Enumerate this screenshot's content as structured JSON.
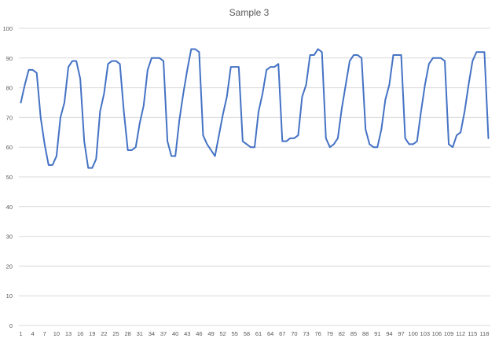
{
  "chart_data": {
    "type": "line",
    "title": "Sample 3",
    "xlabel": "",
    "ylabel": "",
    "ylim": [
      0,
      100
    ],
    "y_ticks": [
      0,
      10,
      20,
      30,
      40,
      50,
      60,
      70,
      80,
      90,
      100
    ],
    "x_tick_step": 3,
    "grid": "horizontal",
    "legend": "none",
    "colors": {
      "series": "#4472c4",
      "grid": "#d9d9d9",
      "text": "#595959"
    },
    "x": [
      1,
      2,
      3,
      4,
      5,
      6,
      7,
      8,
      9,
      10,
      11,
      12,
      13,
      14,
      15,
      16,
      17,
      18,
      19,
      20,
      21,
      22,
      23,
      24,
      25,
      26,
      27,
      28,
      29,
      30,
      31,
      32,
      33,
      34,
      35,
      36,
      37,
      38,
      39,
      40,
      41,
      42,
      43,
      44,
      45,
      46,
      47,
      48,
      49,
      50,
      51,
      52,
      53,
      54,
      55,
      56,
      57,
      58,
      59,
      60,
      61,
      62,
      63,
      64,
      65,
      66,
      67,
      68,
      69,
      70,
      71,
      72,
      73,
      74,
      75,
      76,
      77,
      78,
      79,
      80,
      81,
      82,
      83,
      84,
      85,
      86,
      87,
      88,
      89,
      90,
      91,
      92,
      93,
      94,
      95,
      96,
      97,
      98,
      99,
      100,
      101,
      102,
      103,
      104,
      105,
      106,
      107,
      108,
      109,
      110,
      111,
      112,
      113,
      114,
      115,
      116,
      117,
      118,
      119
    ],
    "series": [
      {
        "values": [
          75,
          81,
          86,
          86,
          85,
          70,
          61,
          54,
          54,
          57,
          70,
          75,
          87,
          89,
          89,
          83,
          62,
          53,
          53,
          56,
          72,
          78,
          88,
          89,
          89,
          88,
          72,
          59,
          59,
          60,
          68,
          74,
          86,
          90,
          90,
          90,
          89,
          62,
          57,
          57,
          69,
          78,
          86,
          93,
          93,
          92,
          64,
          61,
          59,
          57,
          64,
          71,
          77,
          87,
          87,
          87,
          62,
          61,
          60,
          60,
          72,
          78,
          86,
          87,
          87,
          88,
          62,
          62,
          63,
          63,
          64,
          77,
          81,
          91,
          91,
          93,
          92,
          63,
          60,
          61,
          63,
          73,
          81,
          89,
          91,
          91,
          90,
          66,
          61,
          60,
          60,
          66,
          76,
          81,
          91,
          91,
          91,
          63,
          61,
          61,
          62,
          72,
          81,
          88,
          90,
          90,
          90,
          89,
          61,
          60,
          64,
          65,
          72,
          81,
          89,
          92,
          92,
          92,
          63
        ]
      }
    ]
  }
}
